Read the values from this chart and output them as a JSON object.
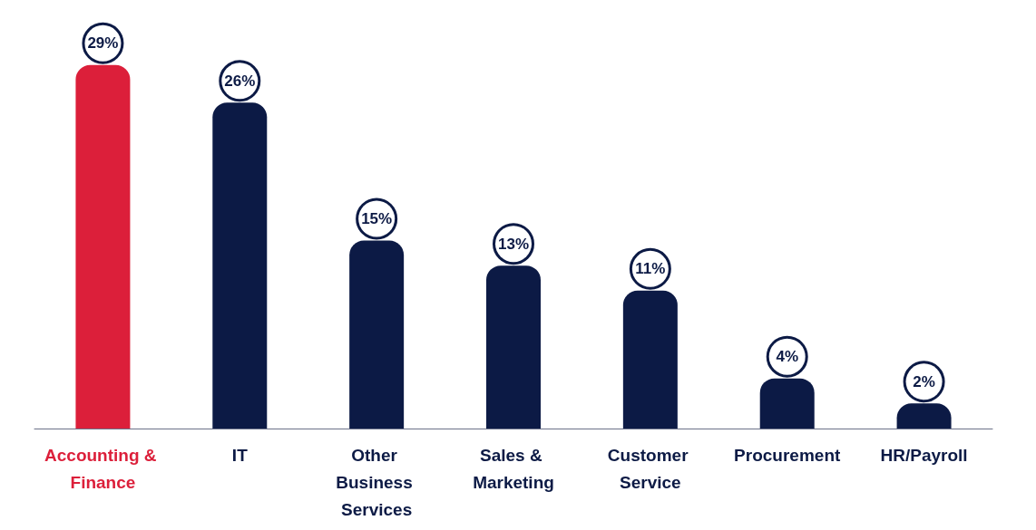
{
  "chart_data": {
    "type": "bar",
    "categories": [
      "Accounting & Finance",
      "IT",
      "Other Business Services",
      "Sales & Marketing",
      "Customer Service",
      "Procurement",
      "HR/Payroll"
    ],
    "values": [
      29,
      26,
      15,
      13,
      11,
      4,
      2
    ],
    "value_labels": [
      "29%",
      "26%",
      "15%",
      "13%",
      "11%",
      "4%",
      "2%"
    ],
    "colors": [
      "#dc1f3a",
      "#0c1a45",
      "#0c1a45",
      "#0c1a45",
      "#0c1a45",
      "#0c1a45",
      "#0c1a45"
    ],
    "grid": false
  }
}
